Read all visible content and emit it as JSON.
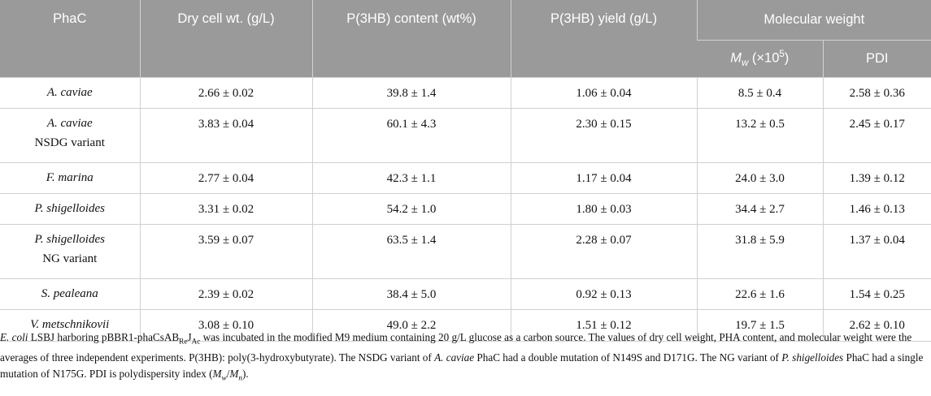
{
  "header": {
    "phac": "PhaC",
    "dcw": "Dry cell wt. (g/L)",
    "content": "P(3HB) content (wt%)",
    "yield": "P(3HB) yield (g/L)",
    "mw_group": "Molecular weight",
    "mw_sym": "M",
    "mw_sub": "w",
    "mw_unit_pre": "(×10",
    "mw_unit_sup": "5",
    "mw_unit_post": ")",
    "pdi": "PDI"
  },
  "rows": [
    {
      "name": "A. caviae",
      "variant": "",
      "dcw": "2.66 ± 0.02",
      "content": "39.8 ± 1.4",
      "yield": "1.06 ± 0.04",
      "mw": "8.5 ± 0.4",
      "pdi": "2.58 ± 0.36"
    },
    {
      "name": "A. caviae",
      "variant": "NSDG variant",
      "dcw": "3.83 ± 0.04",
      "content": "60.1 ± 4.3",
      "yield": "2.30 ± 0.15",
      "mw": "13.2 ± 0.5",
      "pdi": "2.45 ± 0.17"
    },
    {
      "name": "F. marina",
      "variant": "",
      "dcw": "2.77 ± 0.04",
      "content": "42.3 ± 1.1",
      "yield": "1.17 ± 0.04",
      "mw": "24.0 ± 3.0",
      "pdi": "1.39 ± 0.12"
    },
    {
      "name": "P. shigelloides",
      "variant": "",
      "dcw": "3.31 ± 0.02",
      "content": "54.2 ± 1.0",
      "yield": "1.80 ± 0.03",
      "mw": "34.4 ± 2.7",
      "pdi": "1.46 ± 0.13"
    },
    {
      "name": "P. shigelloides",
      "variant": "NG variant",
      "dcw": "3.59 ± 0.07",
      "content": "63.5 ± 1.4",
      "yield": "2.28 ± 0.07",
      "mw": "31.8 ± 5.9",
      "pdi": "1.37 ± 0.04"
    },
    {
      "name": "S. pealeana",
      "variant": "",
      "dcw": "2.39 ± 0.02",
      "content": "38.4 ± 5.0",
      "yield": "0.92 ± 0.13",
      "mw": "22.6 ± 1.6",
      "pdi": "1.54 ± 0.25"
    },
    {
      "name": "V. metschnikovii",
      "variant": "",
      "dcw": "3.08 ± 0.10",
      "content": "49.0 ± 2.2",
      "yield": "1.51 ± 0.12",
      "mw": "19.7 ± 1.5",
      "pdi": "2.62 ± 0.10"
    }
  ],
  "footnote": {
    "p1_ital": "E. coli",
    "p1a": " LSBJ harboring pBBR1-phaCsAB",
    "p1_sub1": "Re",
    "p1_mid": "J",
    "p1_sub2": "Ac",
    "p1b": " was incubated in the modified M9 medium containing 20 g/L glucose as a carbon source. The values of dry cell weight, PHA content, and molecular weight were the averages of three independent experiments. P(3HB): poly(3-hydroxybutyrate). The NSDG variant of ",
    "p2_ital": "A. caviae",
    "p2": " PhaC had a double mutation of N149S and D171G. The NG variant of ",
    "p3_ital": "P. shigelloides",
    "p3": " PhaC had a single mutation of N175G. PDI is polydispersity index (",
    "p4_m1": "M",
    "p4_s1": "w",
    "p4_slash": "/",
    "p4_m2": "M",
    "p4_s2": "n",
    "p4_end": ")."
  }
}
